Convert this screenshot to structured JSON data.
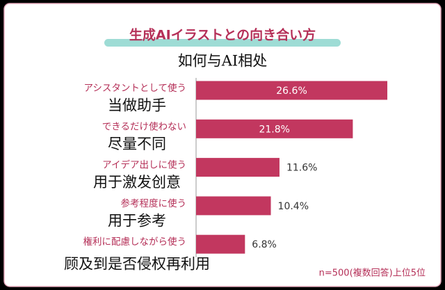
{
  "chart_data": {
    "type": "bar",
    "title": "生成AIイラストとの向き合い方",
    "subtitle": "如何与AI相处",
    "categories": [
      "アシスタントとして使う",
      "できるだけ使わない",
      "アイデア出しに使う",
      "参考程度に使う",
      "権利に配慮しながら使う"
    ],
    "category_translations": [
      "当做助手",
      "尽量不同",
      "用于激发创意",
      "用于参考",
      "顾及到是否侵权再利用"
    ],
    "values": [
      26.6,
      21.8,
      11.6,
      10.4,
      6.8
    ],
    "value_labels": [
      "26.6%",
      "21.8%",
      "11.6%",
      "10.4%",
      "6.8%"
    ],
    "color": "#c2375f",
    "note": "n=500(複数回答)上位5位"
  }
}
